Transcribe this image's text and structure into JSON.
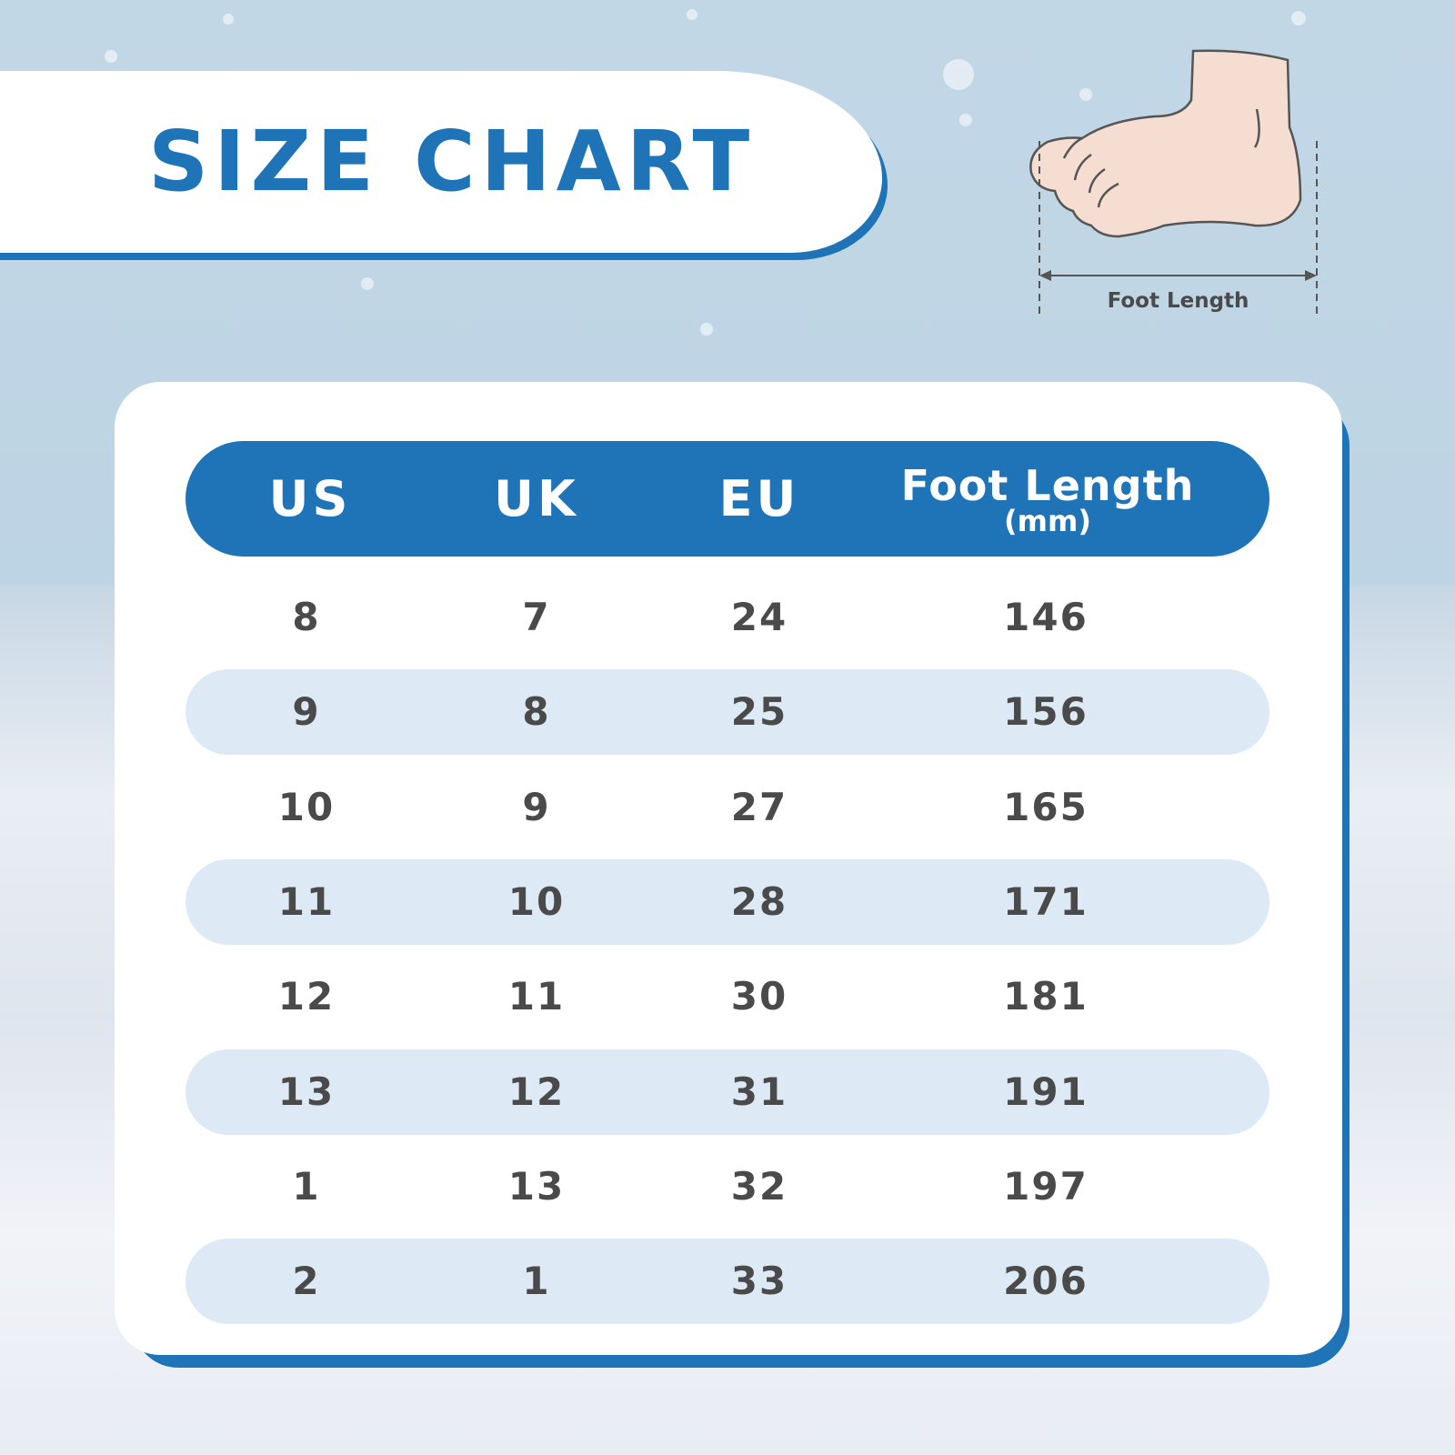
{
  "title": "SIZE CHART",
  "diagram": {
    "label": "Foot Length",
    "icon": "foot-illustration"
  },
  "colors": {
    "accent": "#1f73b7",
    "row_shade": "#ddeaf5",
    "text": "#4a4a4a"
  },
  "table": {
    "headers": {
      "us": "US",
      "uk": "UK",
      "eu": "EU",
      "foot_length": "Foot Length",
      "foot_length_unit": "(mm)"
    },
    "rows": [
      {
        "us": "8",
        "uk": "7",
        "eu": "24",
        "mm": "146"
      },
      {
        "us": "9",
        "uk": "8",
        "eu": "25",
        "mm": "156"
      },
      {
        "us": "10",
        "uk": "9",
        "eu": "27",
        "mm": "165"
      },
      {
        "us": "11",
        "uk": "10",
        "eu": "28",
        "mm": "171"
      },
      {
        "us": "12",
        "uk": "11",
        "eu": "30",
        "mm": "181"
      },
      {
        "us": "13",
        "uk": "12",
        "eu": "31",
        "mm": "191"
      },
      {
        "us": "1",
        "uk": "13",
        "eu": "32",
        "mm": "197"
      },
      {
        "us": "2",
        "uk": "1",
        "eu": "33",
        "mm": "206"
      }
    ]
  }
}
